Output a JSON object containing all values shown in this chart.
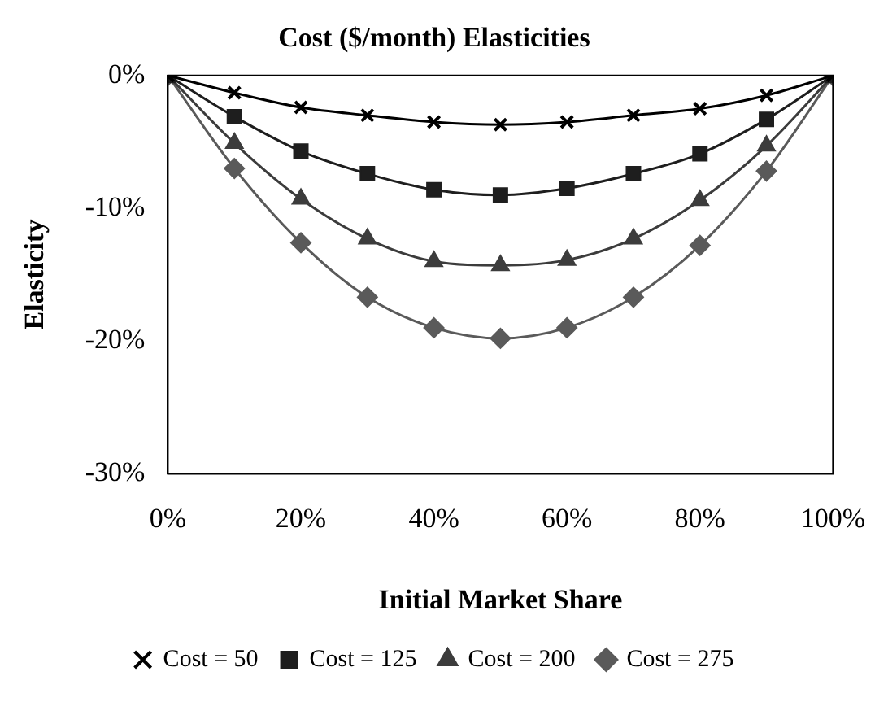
{
  "chart_data": {
    "type": "line",
    "title": "Cost ($/month) Elasticities",
    "xlabel": "Initial Market Share",
    "ylabel": "Elasticity",
    "x": [
      0,
      10,
      20,
      30,
      40,
      50,
      60,
      70,
      80,
      90,
      100
    ],
    "series": [
      {
        "name": "Cost = 50",
        "color": "#000000",
        "marker": "cross",
        "values": [
          0,
          -1.3,
          -2.4,
          -3.0,
          -3.5,
          -3.7,
          -3.5,
          -3.0,
          -2.5,
          -1.5,
          0
        ]
      },
      {
        "name": "Cost = 125",
        "color": "#1e1e1e",
        "marker": "square",
        "values": [
          0,
          -3.1,
          -5.7,
          -7.4,
          -8.6,
          -9.0,
          -8.5,
          -7.4,
          -5.9,
          -3.3,
          0
        ]
      },
      {
        "name": "Cost = 200",
        "color": "#3c3c3c",
        "marker": "triangle",
        "values": [
          0,
          -5.1,
          -9.3,
          -12.3,
          -14.0,
          -14.3,
          -13.9,
          -12.3,
          -9.4,
          -5.3,
          0
        ]
      },
      {
        "name": "Cost = 275",
        "color": "#5a5a5a",
        "marker": "diamond",
        "values": [
          0,
          -7.0,
          -12.6,
          -16.7,
          -19.0,
          -19.8,
          -19.0,
          -16.7,
          -12.8,
          -7.2,
          0
        ]
      }
    ],
    "xlim": [
      0,
      100
    ],
    "xticks": [
      {
        "value": 0,
        "label": "0%"
      },
      {
        "value": 20,
        "label": "20%"
      },
      {
        "value": 40,
        "label": "40%"
      },
      {
        "value": 60,
        "label": "60%"
      },
      {
        "value": 80,
        "label": "80%"
      },
      {
        "value": 100,
        "label": "100%"
      }
    ],
    "ylim": [
      -30,
      0
    ],
    "yticks": [
      {
        "value": -30,
        "label": "-30%"
      },
      {
        "value": -20,
        "label": "-20%"
      },
      {
        "value": -10,
        "label": "-10%"
      },
      {
        "value": 0,
        "label": "0%"
      }
    ],
    "grid": false,
    "legend": "bottom",
    "line_style": "solid"
  }
}
